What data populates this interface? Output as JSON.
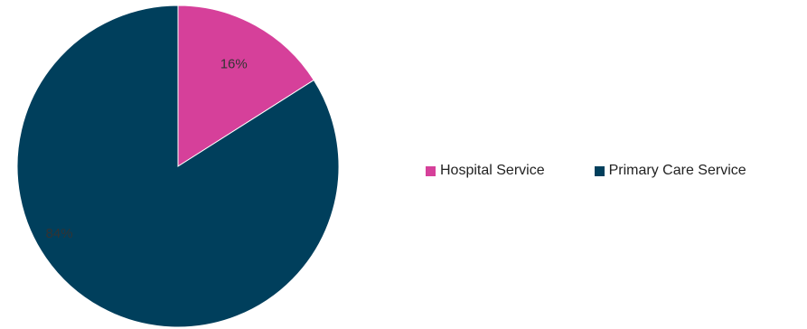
{
  "chart_data": {
    "type": "pie",
    "title": "",
    "legend_position": "right",
    "slices": [
      {
        "label": "Hospital Service",
        "value": 16,
        "value_label": "16%",
        "color": "#d6409a"
      },
      {
        "label": "Primary Care Service",
        "value": 84,
        "value_label": "84%",
        "color": "#003f5c"
      }
    ]
  }
}
